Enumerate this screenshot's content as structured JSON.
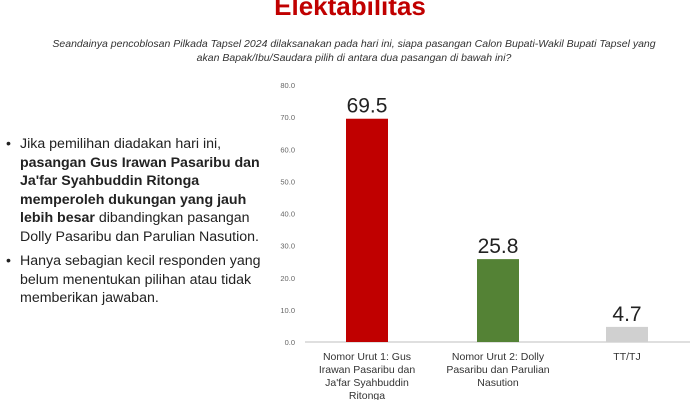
{
  "title": "Elektabilitas",
  "question_line1": "Seandainya pencoblosan Pilkada Tapsel 2024 dilaksanakan pada hari ini, siapa pasangan Calon Bupati-Wakil Bupati Tapsel yang",
  "question_line2": "akan Bapak/Ibu/Saudara pilih di antara dua pasangan di bawah ini?",
  "bullets": [
    {
      "marker": "•",
      "pre": "Jika pemilihan diadakan hari ini, ",
      "bold": "pasangan Gus Irawan Pasaribu dan Ja'far Syahbuddin Ritonga memperoleh dukungan yang jauh lebih besar",
      "post": " dibandingkan pasangan Dolly Pasaribu dan Parulian Nasution."
    },
    {
      "marker": "•",
      "pre": "Hanya sebagian kecil responden yang belum menentukan pilihan atau tidak memberikan jawaban.",
      "bold": "",
      "post": ""
    }
  ],
  "chart_data": {
    "type": "bar",
    "categories": [
      [
        "Nomor Urut 1: Gus",
        "Irawan Pasaribu dan",
        "Ja'far Syahbuddin",
        "Ritonga"
      ],
      [
        "Nomor Urut 2: Dolly",
        "Pasaribu dan Parulian",
        "Nasution"
      ],
      [
        "TT/TJ"
      ]
    ],
    "values": [
      69.5,
      25.8,
      4.7
    ],
    "value_labels": [
      "69.5",
      "25.8",
      "4.7"
    ],
    "bar_colors": [
      "#c00000",
      "#548235",
      "#d0d0d0"
    ],
    "ylim": [
      0,
      80
    ],
    "yticks": [
      "0.0",
      "10.0",
      "20.0",
      "30.0",
      "40.0",
      "50.0",
      "60.0",
      "70.0",
      "80.0"
    ],
    "grid": false
  }
}
